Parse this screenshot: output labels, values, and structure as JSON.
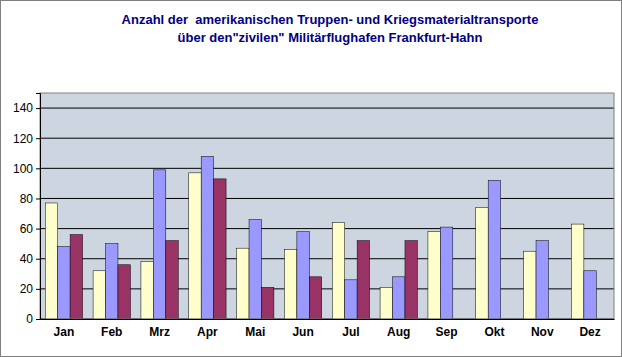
{
  "chart_data": {
    "type": "bar",
    "title": [
      "Anzahl der  amerikanischen Truppen- und Kriegsmaterialtransporte",
      "über den\"zivilen\" Militärflughafen Frankfurt-Hahn"
    ],
    "categories": [
      "Jan",
      "Feb",
      "Mrz",
      "Apr",
      "Mai",
      "Jun",
      "Jul",
      "Aug",
      "Sep",
      "Okt",
      "Nov",
      "Dez"
    ],
    "series": [
      {
        "color": "#ffffcc",
        "values": [
          77,
          32,
          38,
          97,
          47,
          46,
          64,
          21,
          58,
          74,
          45,
          63
        ]
      },
      {
        "color": "#9999ff",
        "values": [
          48,
          50,
          99,
          108,
          66,
          58,
          26,
          28,
          61,
          92,
          52,
          32
        ]
      },
      {
        "color": "#993366",
        "values": [
          56,
          36,
          52,
          93,
          21,
          28,
          52,
          52,
          null,
          null,
          null,
          null
        ]
      }
    ],
    "ylim": [
      0,
      150
    ],
    "yticks": [
      0,
      20,
      40,
      60,
      80,
      100,
      120,
      140
    ],
    "grid": true
  }
}
